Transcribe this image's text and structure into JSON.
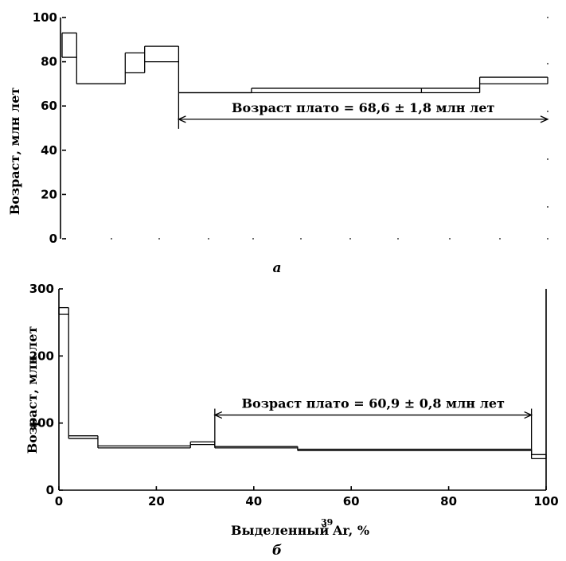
{
  "chart_data": [
    {
      "panel": "а",
      "type": "step",
      "ylabel": "Возраст, млн лет",
      "xlabel": "",
      "xlim": [
        0,
        100
      ],
      "ylim": [
        0,
        100
      ],
      "y_ticks": [
        "0",
        "20",
        "40",
        "60",
        "80",
        "100"
      ],
      "x_ticks": [],
      "grid": false,
      "steps": [
        {
          "x0": 0,
          "x1": 3,
          "y_low": 82,
          "y_high": 93
        },
        {
          "x0": 3,
          "x1": 13,
          "y_low": 70,
          "y_high": 70
        },
        {
          "x0": 13,
          "x1": 17,
          "y_low": 75,
          "y_high": 84
        },
        {
          "x0": 17,
          "x1": 24,
          "y_low": 80,
          "y_high": 87
        },
        {
          "x0": 24,
          "x1": 39,
          "y_low": 66,
          "y_high": 66
        },
        {
          "x0": 39,
          "x1": 74,
          "y_low": 66,
          "y_high": 68
        },
        {
          "x0": 74,
          "x1": 86,
          "y_low": 66,
          "y_high": 68
        },
        {
          "x0": 86,
          "x1": 100,
          "y_low": 70,
          "y_high": 73
        }
      ],
      "plateau": {
        "x0": 24,
        "x1": 100,
        "y": 54,
        "label": "Возраст плато = 68,6 ± 1,8 млн лет"
      }
    },
    {
      "panel": "б",
      "type": "step",
      "ylabel": "Возраст, млн лет",
      "xlabel": "Выделенный",
      "xlabel_isotope": "39",
      "xlabel_suffix": "Ar, %",
      "xlim": [
        0,
        100
      ],
      "ylim": [
        0,
        300
      ],
      "y_ticks": [
        "0",
        "100",
        "200",
        "300"
      ],
      "x_ticks": [
        "0",
        "20",
        "40",
        "60",
        "80",
        "100"
      ],
      "grid": false,
      "steps": [
        {
          "x0": 0,
          "x1": 2,
          "y_low": 262,
          "y_high": 272
        },
        {
          "x0": 2,
          "x1": 8,
          "y_low": 77,
          "y_high": 81
        },
        {
          "x0": 8,
          "x1": 27,
          "y_low": 63,
          "y_high": 66
        },
        {
          "x0": 27,
          "x1": 32,
          "y_low": 68,
          "y_high": 72
        },
        {
          "x0": 32,
          "x1": 49,
          "y_low": 63,
          "y_high": 65
        },
        {
          "x0": 49,
          "x1": 97,
          "y_low": 59,
          "y_high": 61
        },
        {
          "x0": 97,
          "x1": 100,
          "y_low": 47,
          "y_high": 53
        }
      ],
      "plateau": {
        "x0": 32,
        "x1": 97,
        "y": 112,
        "label": "Возраст плато = 60,9 ± 0,8 млн лет"
      }
    }
  ]
}
